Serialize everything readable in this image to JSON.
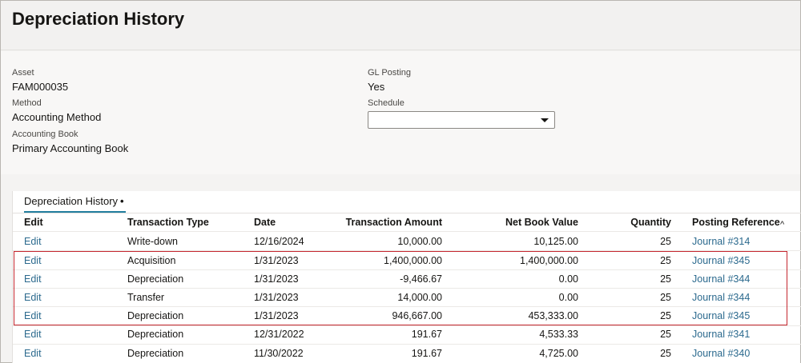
{
  "page": {
    "title": "Depreciation History"
  },
  "form": {
    "asset_label": "Asset",
    "asset_value": "FAM000035",
    "method_label": "Method",
    "method_value": "Accounting Method",
    "book_label": "Accounting Book",
    "book_value": "Primary Accounting Book",
    "gl_label": "GL Posting",
    "gl_value": "Yes",
    "schedule_label": "Schedule",
    "schedule_value": ""
  },
  "table": {
    "tab_label": "Depreciation History",
    "tab_marker": "•",
    "columns": [
      "Edit",
      "Transaction Type",
      "Date",
      "Transaction Amount",
      "Net Book Value",
      "Quantity",
      "Posting Reference"
    ],
    "sort_glyph": "^",
    "rows": [
      [
        "Edit",
        "Write-down",
        "12/16/2024",
        "10,000.00",
        "10,125.00",
        "25",
        "Journal #314"
      ],
      [
        "Edit",
        "Acquisition",
        "1/31/2023",
        "1,400,000.00",
        "1,400,000.00",
        "25",
        "Journal #345"
      ],
      [
        "Edit",
        "Depreciation",
        "1/31/2023",
        "-9,466.67",
        "0.00",
        "25",
        "Journal #344"
      ],
      [
        "Edit",
        "Transfer",
        "1/31/2023",
        "14,000.00",
        "0.00",
        "25",
        "Journal #344"
      ],
      [
        "Edit",
        "Depreciation",
        "1/31/2023",
        "946,667.00",
        "453,333.00",
        "25",
        "Journal #345"
      ],
      [
        "Edit",
        "Depreciation",
        "12/31/2022",
        "191.67",
        "4,533.33",
        "25",
        "Journal #341"
      ],
      [
        "Edit",
        "Depreciation",
        "11/30/2022",
        "191.67",
        "4,725.00",
        "25",
        "Journal #340"
      ]
    ]
  },
  "colors": {
    "link": "#2c6a8e",
    "tab_underline": "#227e9e",
    "highlight_border": "#c4262e"
  }
}
